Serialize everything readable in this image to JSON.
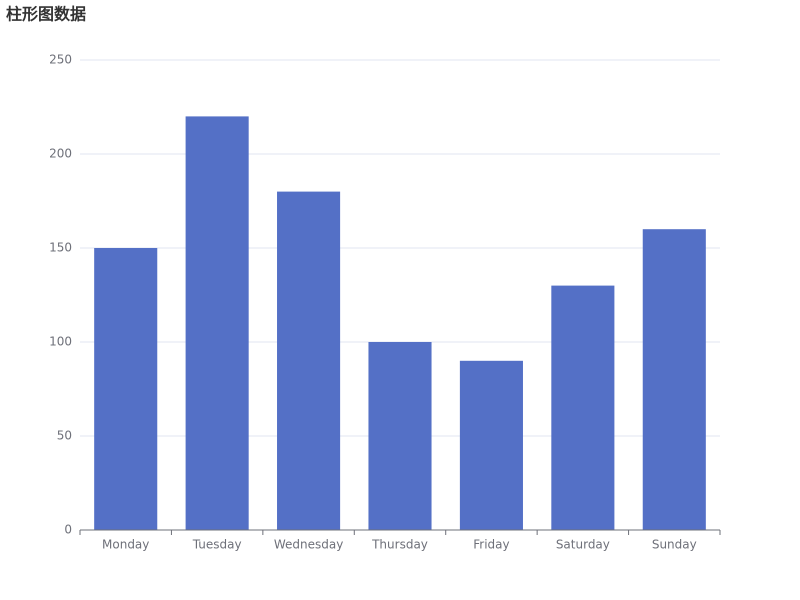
{
  "chart_data": {
    "type": "bar",
    "title": "柱形图数据",
    "categories": [
      "Monday",
      "Tuesday",
      "Wednesday",
      "Thursday",
      "Friday",
      "Saturday",
      "Sunday"
    ],
    "values": [
      150,
      220,
      180,
      100,
      90,
      130,
      160
    ],
    "color": "#5470c6",
    "ylim": [
      0,
      250
    ],
    "yticks": [
      0,
      50,
      100,
      150,
      200,
      250
    ],
    "grid": true
  }
}
